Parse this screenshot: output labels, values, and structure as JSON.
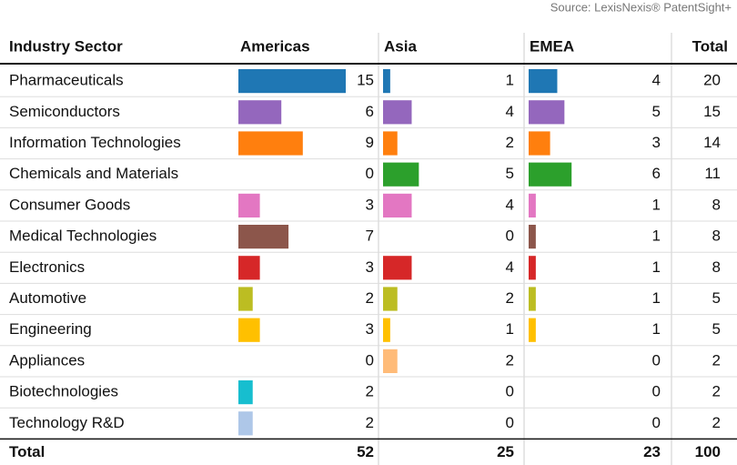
{
  "source": "Source: LexisNexis® PatentSight+",
  "table": {
    "header": [
      "Industry Sector",
      "Americas",
      "Asia",
      "EMEA",
      "Total"
    ],
    "rows": [
      [
        "Pharmaceuticals",
        15,
        1,
        4,
        20
      ],
      [
        "Semiconductors",
        6,
        4,
        5,
        15
      ],
      [
        "Information Technologies",
        9,
        2,
        3,
        14
      ],
      [
        "Chemicals and Materials",
        0,
        5,
        6,
        11
      ],
      [
        "Consumer Goods",
        3,
        4,
        1,
        8
      ],
      [
        "Medical Technologies",
        7,
        0,
        1,
        8
      ],
      [
        "Electronics",
        3,
        4,
        1,
        8
      ],
      [
        "Automotive",
        2,
        2,
        1,
        5
      ],
      [
        "Engineering",
        3,
        1,
        1,
        5
      ],
      [
        "Appliances",
        0,
        2,
        0,
        2
      ],
      [
        "Biotechnologies",
        2,
        0,
        0,
        2
      ],
      [
        "Technology R&D",
        2,
        0,
        0,
        2
      ]
    ],
    "colors": [
      "#1f77b4",
      "#9467bd",
      "#ff7f0e",
      "#2ca02c",
      "#e377c2",
      "#8c564b",
      "#d62728",
      "#bcbd22",
      "#ffc000",
      "#ffbb78",
      "#17becf",
      "#aec7e8"
    ],
    "total": [
      "Total",
      52,
      25,
      23,
      100
    ]
  }
}
